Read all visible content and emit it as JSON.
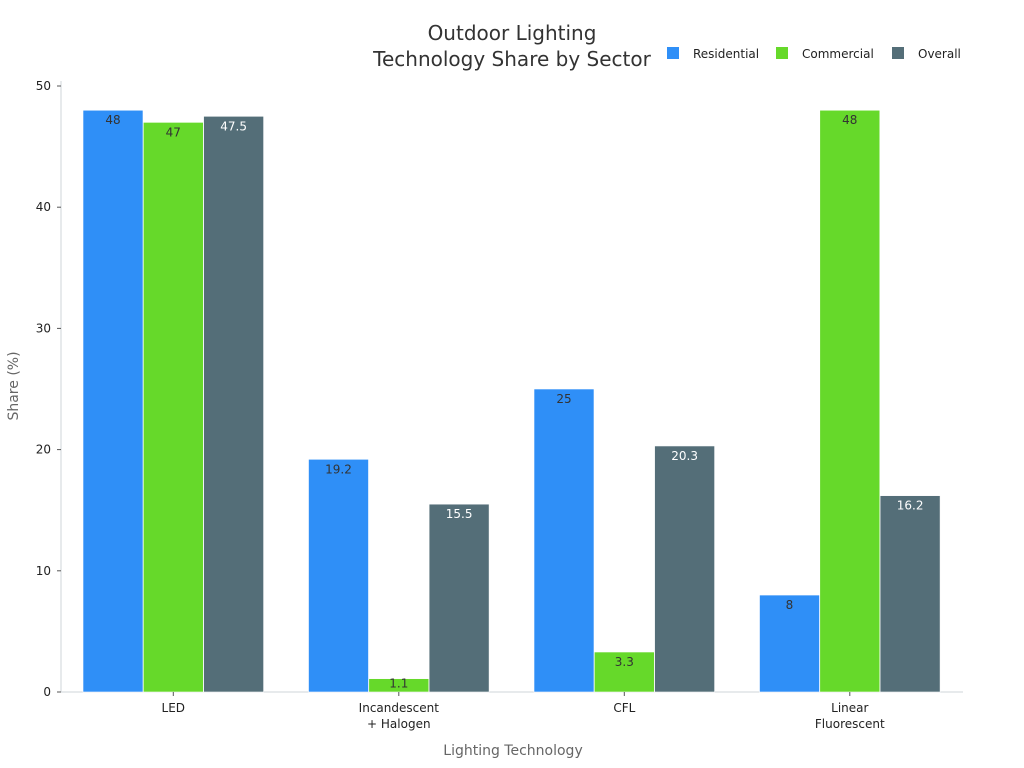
{
  "chart_data": {
    "type": "bar",
    "title_lines": [
      "Outdoor Lighting",
      "Technology Share by Sector"
    ],
    "xlabel": "Lighting Technology",
    "ylabel": "Share (%)",
    "ylim": [
      0,
      50
    ],
    "yticks": [
      "0",
      "10",
      "20",
      "30",
      "40",
      "50"
    ],
    "categories": [
      [
        "LED"
      ],
      [
        "Incandescent",
        "+ Halogen"
      ],
      [
        "CFL"
      ],
      [
        "Linear",
        "Fluorescent"
      ]
    ],
    "series": [
      {
        "name": "Residential",
        "color": "#2f8ff7",
        "label_color": "#333333",
        "values": [
          48,
          19.2,
          25,
          8
        ],
        "labels": [
          "48",
          "19.2",
          "25",
          "8"
        ]
      },
      {
        "name": "Commercial",
        "color": "#66d92a",
        "label_color": "#333333",
        "values": [
          47,
          1.1,
          3.3,
          48
        ],
        "labels": [
          "47",
          "1.1",
          "3.3",
          "48"
        ]
      },
      {
        "name": "Overall",
        "color": "#546e78",
        "label_color": "#ffffff",
        "values": [
          47.5,
          15.5,
          20.3,
          16.2
        ],
        "labels": [
          "47.5",
          "15.5",
          "20.3",
          "16.2"
        ]
      }
    ],
    "legend_position": "top-right",
    "grid": false
  }
}
